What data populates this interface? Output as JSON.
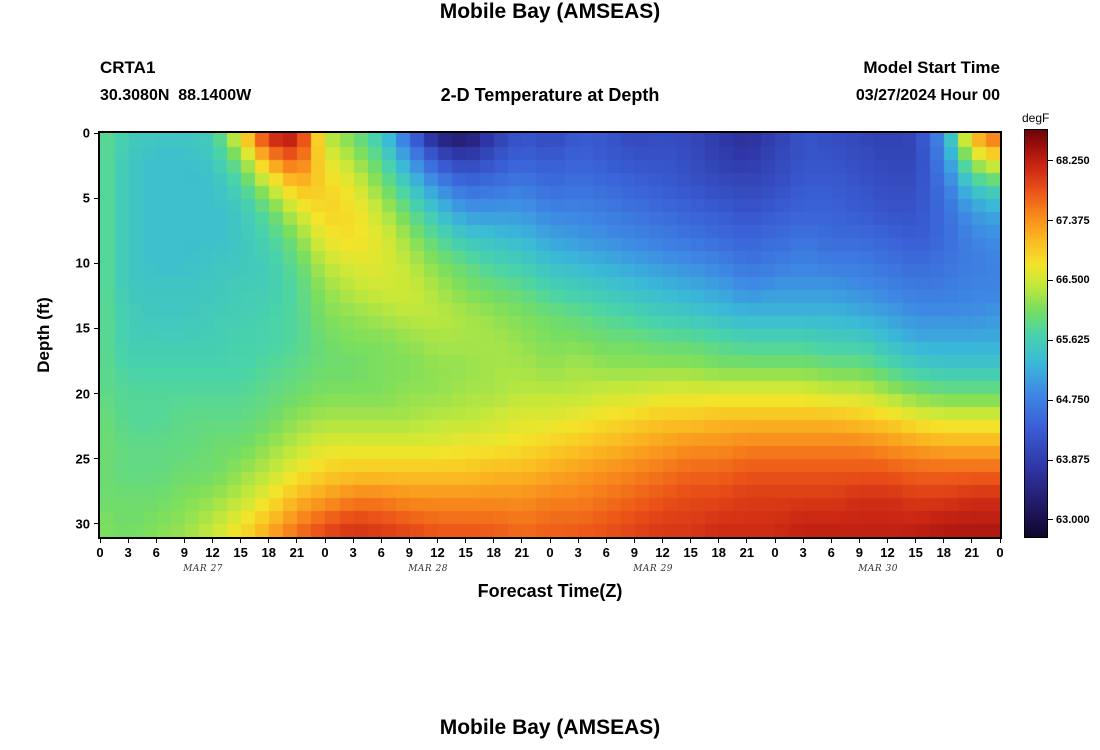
{
  "header": {
    "title": "Mobile Bay (AMSEAS)",
    "station_id": "CRTA1",
    "coordinates": "30.3080N  88.1400W",
    "subtitle": "2-D Temperature at Depth",
    "model_start_label": "Model Start Time",
    "model_start_value": "03/27/2024 Hour 00"
  },
  "footer": {
    "next_chart_title": "Mobile Bay (AMSEAS)"
  },
  "chart_data": {
    "type": "heatmap",
    "title": "Mobile Bay (AMSEAS)",
    "subtitle": "2-D Temperature at Depth",
    "xlabel": "Forecast Time(Z)",
    "ylabel": "Depth (ft)",
    "colorbar_label": "degF",
    "x_range": [
      0,
      96
    ],
    "depth_range": [
      0,
      31
    ],
    "x_hours": [
      0,
      3,
      6,
      9,
      12,
      15,
      18,
      21,
      24,
      27,
      30,
      33,
      36,
      39,
      42,
      45,
      48,
      51,
      54,
      57,
      60,
      63,
      66,
      69,
      72,
      75,
      78,
      81,
      84,
      87,
      90,
      93,
      96
    ],
    "x_tick_labels": [
      "0",
      "3",
      "6",
      "9",
      "12",
      "15",
      "18",
      "21",
      "0",
      "3",
      "6",
      "9",
      "12",
      "15",
      "18",
      "21",
      "0",
      "3",
      "6",
      "9",
      "12",
      "15",
      "18",
      "21",
      "0",
      "3",
      "6",
      "9",
      "12",
      "15",
      "18",
      "21",
      "0"
    ],
    "day_labels": [
      {
        "label": "MAR 27",
        "hour": 11
      },
      {
        "label": "MAR 28",
        "hour": 35
      },
      {
        "label": "MAR 29",
        "hour": 59
      },
      {
        "label": "MAR 30",
        "hour": 83
      }
    ],
    "y_ticks": [
      0,
      5,
      10,
      15,
      20,
      25,
      30
    ],
    "depths_ft": [
      0,
      2,
      4,
      6,
      8,
      10,
      12,
      14,
      16,
      18,
      20,
      22,
      24,
      26,
      28,
      30,
      32
    ],
    "color_domain": [
      62.75,
      68.7
    ],
    "colorbar_ticks": [
      {
        "value": 68.25,
        "label": "68.250"
      },
      {
        "value": 67.375,
        "label": "67.375"
      },
      {
        "value": 66.5,
        "label": "66.500"
      },
      {
        "value": 65.625,
        "label": "65.625"
      },
      {
        "value": 64.75,
        "label": "64.750"
      },
      {
        "value": 63.875,
        "label": "63.875"
      },
      {
        "value": 63.0,
        "label": "63.000"
      }
    ],
    "colormap_stops": [
      [
        0.0,
        14,
        7,
        44
      ],
      [
        0.08,
        36,
        26,
        106
      ],
      [
        0.17,
        47,
        54,
        165
      ],
      [
        0.27,
        58,
        95,
        214
      ],
      [
        0.35,
        62,
        135,
        228
      ],
      [
        0.43,
        58,
        186,
        215
      ],
      [
        0.5,
        74,
        212,
        168
      ],
      [
        0.56,
        122,
        222,
        94
      ],
      [
        0.62,
        198,
        232,
        58
      ],
      [
        0.67,
        244,
        228,
        42
      ],
      [
        0.73,
        250,
        186,
        34
      ],
      [
        0.79,
        248,
        138,
        28
      ],
      [
        0.85,
        236,
        84,
        24
      ],
      [
        0.91,
        203,
        39,
        20
      ],
      [
        0.96,
        158,
        16,
        12
      ],
      [
        1.0,
        108,
        6,
        8
      ]
    ],
    "values_by_time": [
      [
        65.9,
        65.9,
        65.9,
        65.9,
        65.9,
        65.9,
        65.9,
        65.9,
        65.9,
        65.9,
        65.9,
        66.0,
        66.0,
        66.0,
        66.0,
        66.1,
        66.1
      ],
      [
        65.6,
        65.5,
        65.5,
        65.5,
        65.5,
        65.5,
        65.5,
        65.6,
        65.6,
        65.7,
        65.8,
        65.8,
        65.9,
        65.9,
        66.0,
        66.0,
        66.1
      ],
      [
        65.5,
        65.4,
        65.4,
        65.4,
        65.4,
        65.4,
        65.5,
        65.5,
        65.6,
        65.7,
        65.8,
        65.8,
        65.9,
        65.9,
        66.0,
        66.1,
        66.2
      ],
      [
        65.5,
        65.4,
        65.4,
        65.4,
        65.4,
        65.4,
        65.5,
        65.5,
        65.6,
        65.7,
        65.8,
        65.9,
        65.9,
        66.0,
        66.1,
        66.2,
        66.3
      ],
      [
        65.6,
        65.5,
        65.4,
        65.4,
        65.4,
        65.5,
        65.5,
        65.6,
        65.6,
        65.7,
        65.8,
        65.9,
        66.0,
        66.0,
        66.2,
        66.4,
        66.6
      ],
      [
        66.8,
        66.1,
        65.7,
        65.5,
        65.5,
        65.5,
        65.6,
        65.6,
        65.7,
        65.7,
        65.8,
        65.9,
        66.0,
        66.2,
        66.4,
        66.7,
        67.0
      ],
      [
        68.3,
        67.3,
        66.4,
        65.9,
        65.7,
        65.6,
        65.6,
        65.7,
        65.7,
        65.8,
        65.9,
        66.0,
        66.2,
        66.4,
        66.7,
        67.1,
        67.5
      ],
      [
        68.4,
        67.8,
        67.1,
        66.5,
        66.1,
        65.9,
        65.8,
        65.8,
        65.8,
        65.9,
        66.0,
        66.2,
        66.4,
        66.7,
        67.1,
        67.5,
        67.9
      ],
      [
        66.4,
        66.7,
        66.9,
        66.9,
        66.7,
        66.4,
        66.2,
        66.1,
        66.0,
        66.0,
        66.1,
        66.3,
        66.6,
        66.9,
        67.3,
        67.8,
        68.1
      ],
      [
        66.0,
        66.3,
        66.6,
        66.8,
        66.8,
        66.6,
        66.4,
        66.2,
        66.1,
        66.0,
        66.1,
        66.3,
        66.6,
        67.0,
        67.5,
        68.0,
        68.2
      ],
      [
        65.5,
        65.8,
        66.1,
        66.4,
        66.6,
        66.6,
        66.5,
        66.3,
        66.1,
        66.1,
        66.1,
        66.3,
        66.6,
        67.0,
        67.5,
        67.9,
        68.2
      ],
      [
        64.4,
        65.0,
        65.5,
        65.9,
        66.2,
        66.4,
        66.5,
        66.4,
        66.2,
        66.1,
        66.2,
        66.3,
        66.6,
        67.0,
        67.4,
        67.8,
        68.1
      ],
      [
        63.3,
        64.2,
        64.9,
        65.4,
        65.8,
        66.1,
        66.3,
        66.4,
        66.3,
        66.2,
        66.2,
        66.4,
        66.6,
        67.0,
        67.4,
        67.7,
        68.0
      ],
      [
        63.1,
        63.9,
        64.5,
        65.0,
        65.5,
        65.9,
        66.1,
        66.3,
        66.3,
        66.2,
        66.3,
        66.4,
        66.7,
        67.0,
        67.4,
        67.7,
        68.0
      ],
      [
        63.8,
        64.2,
        64.6,
        65.0,
        65.4,
        65.7,
        66.0,
        66.2,
        66.3,
        66.3,
        66.3,
        66.5,
        66.7,
        67.1,
        67.4,
        67.7,
        67.9
      ],
      [
        64.2,
        64.4,
        64.7,
        65.0,
        65.3,
        65.6,
        65.9,
        66.1,
        66.2,
        66.3,
        66.4,
        66.6,
        66.8,
        67.1,
        67.4,
        67.6,
        67.8
      ],
      [
        64.0,
        64.3,
        64.5,
        64.8,
        65.1,
        65.4,
        65.7,
        66.0,
        66.1,
        66.2,
        66.4,
        66.6,
        66.9,
        67.2,
        67.5,
        67.7,
        67.8
      ],
      [
        64.3,
        64.4,
        64.6,
        64.8,
        65.0,
        65.3,
        65.6,
        65.9,
        66.1,
        66.3,
        66.4,
        66.7,
        67.0,
        67.3,
        67.5,
        67.7,
        67.9
      ],
      [
        64.2,
        64.3,
        64.5,
        64.7,
        64.9,
        65.2,
        65.5,
        65.8,
        66.0,
        66.2,
        66.5,
        66.8,
        67.1,
        67.4,
        67.6,
        67.8,
        67.9
      ],
      [
        64.0,
        64.2,
        64.4,
        64.6,
        64.8,
        65.1,
        65.4,
        65.7,
        66.0,
        66.2,
        66.5,
        66.9,
        67.2,
        67.5,
        67.7,
        67.9,
        68.0
      ],
      [
        64.1,
        64.2,
        64.3,
        64.5,
        64.7,
        65.0,
        65.3,
        65.6,
        65.9,
        66.2,
        66.6,
        67.0,
        67.3,
        67.6,
        67.8,
        68.0,
        68.1
      ],
      [
        64.0,
        64.1,
        64.2,
        64.4,
        64.6,
        64.9,
        65.2,
        65.5,
        65.9,
        66.2,
        66.6,
        67.0,
        67.4,
        67.7,
        67.9,
        68.0,
        68.1
      ],
      [
        63.8,
        63.9,
        64.1,
        64.3,
        64.5,
        64.8,
        65.1,
        65.4,
        65.8,
        66.1,
        66.6,
        67.1,
        67.4,
        67.7,
        67.9,
        68.1,
        68.2
      ],
      [
        63.6,
        63.8,
        64.0,
        64.2,
        64.4,
        64.6,
        64.9,
        65.3,
        65.7,
        66.1,
        66.6,
        67.1,
        67.5,
        67.8,
        68.0,
        68.1,
        68.2
      ],
      [
        63.9,
        64.0,
        64.1,
        64.3,
        64.5,
        64.7,
        65.0,
        65.3,
        65.7,
        66.1,
        66.6,
        67.1,
        67.5,
        67.8,
        68.0,
        68.1,
        68.2
      ],
      [
        64.2,
        64.2,
        64.3,
        64.4,
        64.6,
        64.8,
        65.0,
        65.3,
        65.7,
        66.1,
        66.6,
        67.1,
        67.5,
        67.8,
        68.0,
        68.2,
        68.3
      ],
      [
        64.1,
        64.2,
        64.3,
        64.4,
        64.5,
        64.7,
        65.0,
        65.3,
        65.6,
        66.0,
        66.5,
        67.1,
        67.5,
        67.8,
        68.0,
        68.2,
        68.3
      ],
      [
        64.0,
        64.1,
        64.2,
        64.3,
        64.5,
        64.7,
        64.9,
        65.2,
        65.6,
        66.0,
        66.5,
        67.0,
        67.5,
        67.8,
        68.1,
        68.2,
        68.3
      ],
      [
        63.9,
        64.0,
        64.1,
        64.2,
        64.4,
        64.6,
        64.8,
        65.1,
        65.4,
        65.8,
        66.3,
        66.9,
        67.4,
        67.8,
        68.1,
        68.2,
        68.3
      ],
      [
        64.0,
        64.0,
        64.1,
        64.2,
        64.3,
        64.5,
        64.7,
        64.9,
        65.2,
        65.6,
        66.1,
        66.7,
        67.3,
        67.7,
        68.0,
        68.2,
        68.4
      ],
      [
        65.0,
        64.8,
        64.6,
        64.5,
        64.5,
        64.6,
        64.7,
        64.9,
        65.2,
        65.5,
        66.0,
        66.6,
        67.2,
        67.7,
        68.0,
        68.3,
        68.4
      ],
      [
        67.2,
        66.3,
        65.5,
        65.0,
        64.8,
        64.7,
        64.8,
        64.9,
        65.2,
        65.5,
        66.0,
        66.6,
        67.2,
        67.7,
        68.1,
        68.3,
        68.5
      ],
      [
        67.9,
        66.8,
        65.8,
        65.2,
        64.9,
        64.8,
        64.8,
        65.0,
        65.2,
        65.5,
        66.0,
        66.6,
        67.2,
        67.7,
        68.1,
        68.3,
        68.5
      ]
    ]
  }
}
